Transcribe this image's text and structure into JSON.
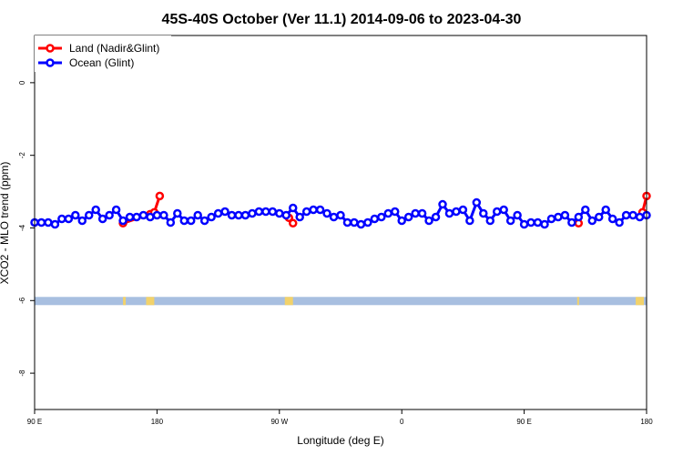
{
  "chart_data": {
    "type": "line",
    "title": "45S-40S October (Ver 11.1)   2014-09-06 to 2023-04-30",
    "xlabel": "Longitude (deg E)",
    "ylabel": "XCO2 - MLO trend (ppm)",
    "xlim": [
      90,
      450
    ],
    "ylim": [
      -9,
      1.3
    ],
    "x_ticks": [
      {
        "value": 90,
        "label": "90 E"
      },
      {
        "value": 180,
        "label": "180"
      },
      {
        "value": 270,
        "label": "90 W"
      },
      {
        "value": 360,
        "label": "0"
      },
      {
        "value": 450,
        "label": "90 E"
      },
      {
        "value": 540,
        "label": "180"
      }
    ],
    "y_ticks": [
      {
        "value": 0,
        "label": "0"
      },
      {
        "value": -2,
        "label": "-2"
      },
      {
        "value": -4,
        "label": "-4"
      },
      {
        "value": -6,
        "label": "-6"
      },
      {
        "value": -8,
        "label": "-8"
      }
    ],
    "legend_position": "top-left",
    "grid": false,
    "series": [
      {
        "name": "Land (Nadir&Glint)",
        "color": "#ff0000",
        "segments": [
          {
            "x": [
              155,
              175,
              178,
              182
            ],
            "y": [
              -3.87,
              -3.62,
              -3.57,
              -3.12
            ]
          },
          {
            "x": [
              277,
              280
            ],
            "y": [
              -3.72,
              -3.87
            ]
          },
          {
            "x": [
              490
            ],
            "y": [
              -3.87
            ]
          },
          {
            "x": [
              537,
              540
            ],
            "y": [
              -3.57,
              -3.12
            ]
          }
        ]
      },
      {
        "name": "Ocean (Glint)",
        "color": "#0000ff",
        "segments": [
          {
            "x": [
              90,
              95,
              100,
              105,
              110,
              115,
              120,
              125,
              130,
              135,
              140,
              145,
              150,
              155,
              160,
              165,
              170,
              175,
              180,
              185,
              190,
              195,
              200,
              205,
              210,
              215,
              220,
              225,
              230,
              235,
              240,
              245,
              250,
              255,
              260,
              265,
              270,
              275,
              280,
              285,
              290,
              295,
              300,
              305,
              310,
              315,
              320,
              325,
              330,
              335,
              340,
              345,
              350,
              355,
              360,
              365,
              370,
              375,
              380,
              385,
              390,
              395,
              400,
              405,
              410,
              415,
              420,
              425,
              430,
              435,
              440,
              445,
              450,
              455,
              460,
              465,
              470,
              475,
              480,
              485,
              490,
              495,
              500,
              505,
              510,
              515,
              520,
              525,
              530,
              535,
              540
            ],
            "y": [
              -3.85,
              -3.85,
              -3.85,
              -3.9,
              -3.75,
              -3.75,
              -3.65,
              -3.8,
              -3.65,
              -3.5,
              -3.75,
              -3.65,
              -3.5,
              -3.8,
              -3.7,
              -3.7,
              -3.65,
              -3.7,
              -3.65,
              -3.65,
              -3.85,
              -3.6,
              -3.8,
              -3.8,
              -3.65,
              -3.8,
              -3.7,
              -3.6,
              -3.55,
              -3.65,
              -3.65,
              -3.65,
              -3.6,
              -3.55,
              -3.55,
              -3.55,
              -3.6,
              -3.65,
              -3.45,
              -3.7,
              -3.55,
              -3.5,
              -3.5,
              -3.6,
              -3.7,
              -3.65,
              -3.85,
              -3.85,
              -3.9,
              -3.85,
              -3.75,
              -3.7,
              -3.6,
              -3.55,
              -3.8,
              -3.7,
              -3.6,
              -3.6,
              -3.8,
              -3.7,
              -3.35,
              -3.6,
              -3.55,
              -3.5,
              -3.8,
              -3.3,
              -3.6,
              -3.8,
              -3.55,
              -3.5,
              -3.8,
              -3.65,
              -3.9,
              -3.85,
              -3.85,
              -3.9,
              -3.75,
              -3.7,
              -3.65,
              -3.85,
              -3.7,
              -3.5,
              -3.8,
              -3.7,
              -3.5,
              -3.75,
              -3.85,
              -3.65,
              -3.65,
              -3.7,
              -3.65
            ]
          }
        ]
      }
    ],
    "background_band": {
      "y": -6,
      "color": "#a8bfe0",
      "land_color": "#f2d26b",
      "land_ranges": [
        [
          155,
          157
        ],
        [
          172,
          178
        ],
        [
          274,
          280
        ],
        [
          489,
          490
        ],
        [
          532,
          538
        ]
      ]
    }
  }
}
